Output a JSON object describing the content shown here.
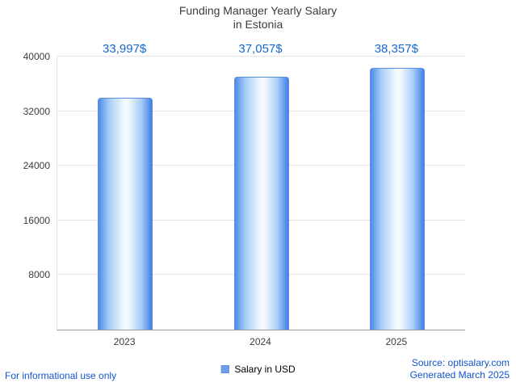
{
  "title": {
    "line1": "Funding Manager Yearly Salary",
    "line2": "in Estonia"
  },
  "chart_data": {
    "type": "bar",
    "title": "Funding Manager Yearly Salary in Estonia",
    "categories": [
      "2023",
      "2024",
      "2025"
    ],
    "values": [
      33997,
      37057,
      38357
    ],
    "value_labels": [
      "33,997$",
      "37,057$",
      "38,357$"
    ],
    "series_name": "Salary in USD",
    "ylim": [
      0,
      40000
    ],
    "yticks": [
      8000,
      16000,
      24000,
      32000,
      40000
    ],
    "grid": true,
    "legend_position": "bottom"
  },
  "legend": {
    "label": "Salary in USD"
  },
  "footer": {
    "disclaimer": "For informational use only",
    "source": "Source: optisalary.com",
    "generated": "Generated March 2025"
  },
  "colors": {
    "value_label": "#1967d2",
    "footer_text": "#1155cc",
    "bar_fill": "#6d9eeb",
    "bar_edge": "#5a8fe0",
    "grid": "#e3e3e3",
    "axis": "#9e9e9e",
    "text": "#3c3c3c"
  }
}
